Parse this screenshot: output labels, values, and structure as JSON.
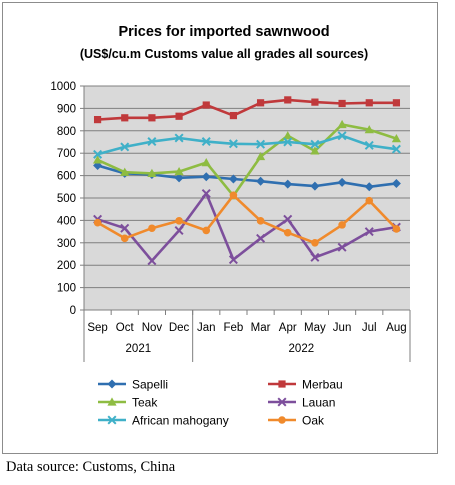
{
  "chart_data": {
    "type": "line",
    "title": "Prices for imported sawnwood",
    "subtitle": "(US$/cu.m Customs value all grades all sources)",
    "xlabel": "",
    "ylabel": "",
    "categories": [
      "Sep",
      "Oct",
      "Nov",
      "Dec",
      "Jan",
      "Feb",
      "Mar",
      "Apr",
      "May",
      "Jun",
      "Jul",
      "Aug"
    ],
    "year_groups": [
      {
        "label": "2021",
        "start": 0,
        "end": 3
      },
      {
        "label": "2022",
        "start": 4,
        "end": 11
      }
    ],
    "ylim": [
      0,
      1000
    ],
    "yticks": [
      "0",
      "100",
      "200",
      "300",
      "400",
      "500",
      "600",
      "700",
      "800",
      "900",
      "1000"
    ],
    "grid": true,
    "legend_position": "bottom",
    "series": [
      {
        "name": "Sapelli",
        "color": "#2f6fb0",
        "marker": "diamond",
        "values": [
          645,
          610,
          605,
          590,
          595,
          585,
          575,
          562,
          553,
          570,
          550,
          565
        ]
      },
      {
        "name": "Merbau",
        "color": "#c0393b",
        "marker": "square",
        "values": [
          850,
          858,
          858,
          865,
          915,
          868,
          925,
          938,
          928,
          922,
          925,
          925
        ]
      },
      {
        "name": "Teak",
        "color": "#8ebc42",
        "marker": "triangle",
        "values": [
          670,
          615,
          610,
          618,
          658,
          510,
          685,
          778,
          710,
          828,
          805,
          765
        ]
      },
      {
        "name": "Lauan",
        "color": "#7d4f9c",
        "marker": "x",
        "values": [
          405,
          365,
          220,
          355,
          520,
          225,
          320,
          405,
          235,
          280,
          350,
          370
        ]
      },
      {
        "name": "African mahogany",
        "color": "#3fb0c8",
        "marker": "x",
        "values": [
          695,
          728,
          752,
          768,
          752,
          742,
          740,
          750,
          740,
          778,
          735,
          718
        ]
      },
      {
        "name": "Oak",
        "color": "#f08a2c",
        "marker": "circle",
        "values": [
          390,
          320,
          365,
          398,
          355,
          512,
          398,
          345,
          300,
          380,
          488,
          362
        ]
      }
    ]
  },
  "source_note": "Data source: Customs, China"
}
